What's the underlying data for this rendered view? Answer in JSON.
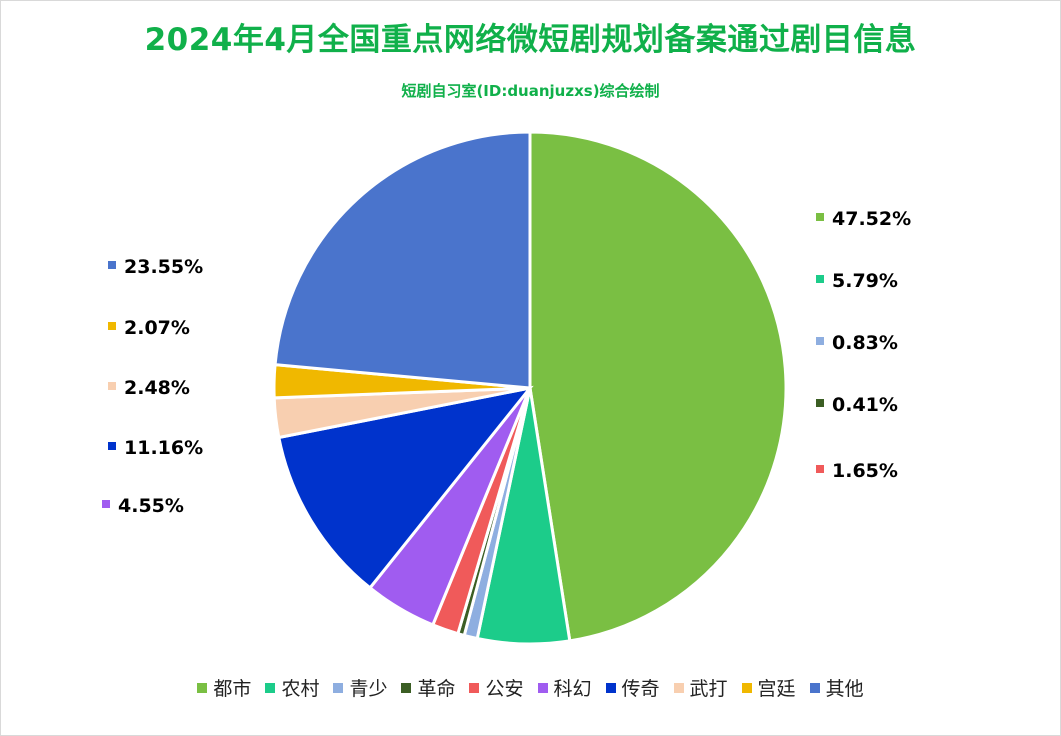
{
  "chart_data": {
    "type": "pie",
    "title": "2024年4月全国重点网络微短剧规划备案通过剧目信息",
    "subtitle": "短剧自习室(ID:duanjuzxs)综合绘制",
    "legend_position": "bottom",
    "categories": [
      "都市",
      "农村",
      "青少",
      "革命",
      "公安",
      "科幻",
      "传奇",
      "武打",
      "宫廷",
      "其他"
    ],
    "values": [
      47.52,
      5.79,
      0.83,
      0.41,
      1.65,
      4.55,
      11.16,
      2.48,
      2.07,
      23.55
    ],
    "labels": [
      "47.52%",
      "5.79%",
      "0.83%",
      "0.41%",
      "1.65%",
      "4.55%",
      "11.16%",
      "2.48%",
      "2.07%",
      "23.55%"
    ],
    "colors": [
      "#7abf43",
      "#1ccc8a",
      "#8eaee0",
      "#3b5e24",
      "#f05a5a",
      "#a05cf0",
      "#0033cc",
      "#f8cfb0",
      "#f0b800",
      "#4a74cc"
    ]
  }
}
